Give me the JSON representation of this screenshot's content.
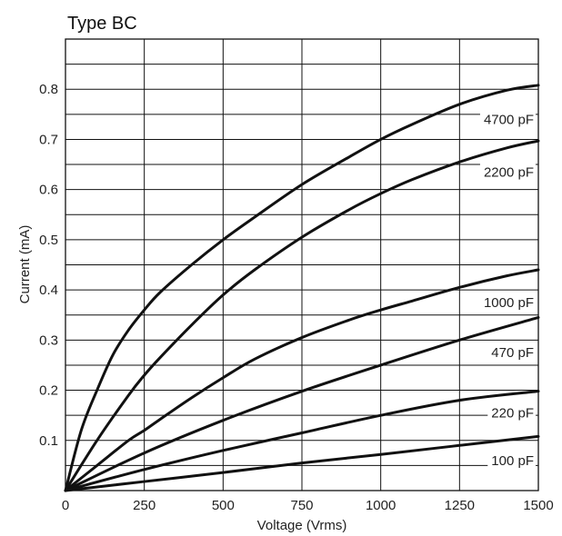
{
  "chart_data": {
    "type": "line",
    "title": "Type BC",
    "xlabel": "Voltage (Vrms)",
    "ylabel": "Current (mA)",
    "xlim": [
      0,
      1500
    ],
    "ylim": [
      0,
      0.9
    ],
    "xticks": [
      0,
      250,
      500,
      750,
      1000,
      1250,
      1500
    ],
    "yticks": [
      0.1,
      0.2,
      0.3,
      0.4,
      0.5,
      0.6,
      0.7,
      0.8
    ],
    "grid": true,
    "series": [
      {
        "name": "4700 pF",
        "x": [
          0,
          50,
          100,
          150,
          200,
          250,
          300,
          400,
          500,
          600,
          750,
          900,
          1000,
          1100,
          1250,
          1400,
          1500
        ],
        "y": [
          0,
          0.12,
          0.2,
          0.27,
          0.32,
          0.36,
          0.395,
          0.45,
          0.5,
          0.545,
          0.61,
          0.665,
          0.7,
          0.73,
          0.77,
          0.798,
          0.808
        ]
      },
      {
        "name": "2200 pF",
        "x": [
          0,
          100,
          200,
          250,
          300,
          400,
          500,
          600,
          750,
          900,
          1000,
          1100,
          1250,
          1400,
          1500
        ],
        "y": [
          0,
          0.1,
          0.19,
          0.23,
          0.265,
          0.33,
          0.39,
          0.44,
          0.505,
          0.56,
          0.592,
          0.62,
          0.655,
          0.683,
          0.697
        ]
      },
      {
        "name": "1000 pF",
        "x": [
          0,
          100,
          200,
          250,
          300,
          400,
          500,
          600,
          750,
          900,
          1000,
          1100,
          1250,
          1400,
          1500
        ],
        "y": [
          0,
          0.05,
          0.1,
          0.12,
          0.142,
          0.185,
          0.225,
          0.262,
          0.305,
          0.34,
          0.36,
          0.378,
          0.405,
          0.428,
          0.44
        ]
      },
      {
        "name": "470 pF",
        "x": [
          0,
          250,
          500,
          750,
          1000,
          1250,
          1500
        ],
        "y": [
          0,
          0.075,
          0.14,
          0.198,
          0.25,
          0.3,
          0.345
        ]
      },
      {
        "name": "220 pF",
        "x": [
          0,
          250,
          500,
          750,
          1000,
          1250,
          1500
        ],
        "y": [
          0,
          0.042,
          0.08,
          0.115,
          0.15,
          0.18,
          0.198
        ]
      },
      {
        "name": "100 pF",
        "x": [
          0,
          250,
          500,
          750,
          1000,
          1250,
          1500
        ],
        "y": [
          0,
          0.018,
          0.036,
          0.055,
          0.072,
          0.09,
          0.108
        ]
      }
    ]
  }
}
